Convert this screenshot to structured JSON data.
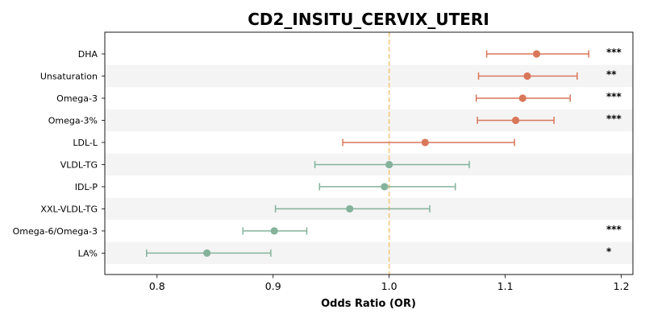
{
  "chart_data": {
    "type": "forest",
    "title": "CD2_INSITU_CERVIX_UTERI",
    "xlabel": "Odds Ratio (OR)",
    "ylabel": "",
    "xlim": [
      0.755,
      1.21
    ],
    "x_ticks": [
      "0.8",
      "0.9",
      "1.0",
      "1.1",
      "1.2"
    ],
    "reference_line": 1.0,
    "grid": false,
    "alternating_row_shading": true,
    "colors": {
      "positive": "#d9775a",
      "negative": "#84b29b",
      "reference": "#f5c983",
      "band": "#f4f4f4"
    },
    "rows": [
      {
        "label": "DHA",
        "or": 1.127,
        "lo": 1.084,
        "hi": 1.172,
        "sig": "***"
      },
      {
        "label": "Unsaturation",
        "or": 1.119,
        "lo": 1.077,
        "hi": 1.162,
        "sig": "**"
      },
      {
        "label": "Omega-3",
        "or": 1.115,
        "lo": 1.075,
        "hi": 1.156,
        "sig": "***"
      },
      {
        "label": "Omega-3%",
        "or": 1.109,
        "lo": 1.076,
        "hi": 1.142,
        "sig": "***"
      },
      {
        "label": "LDL-L",
        "or": 1.031,
        "lo": 0.96,
        "hi": 1.108,
        "sig": ""
      },
      {
        "label": "VLDL-TG",
        "or": 1.0,
        "lo": 0.936,
        "hi": 1.069,
        "sig": ""
      },
      {
        "label": "IDL-P",
        "or": 0.996,
        "lo": 0.94,
        "hi": 1.057,
        "sig": ""
      },
      {
        "label": "XXL-VLDL-TG",
        "or": 0.966,
        "lo": 0.902,
        "hi": 1.035,
        "sig": ""
      },
      {
        "label": "Omega-6/Omega-3",
        "or": 0.901,
        "lo": 0.874,
        "hi": 0.929,
        "sig": "***"
      },
      {
        "label": "LA%",
        "or": 0.843,
        "lo": 0.791,
        "hi": 0.898,
        "sig": "*"
      }
    ]
  }
}
